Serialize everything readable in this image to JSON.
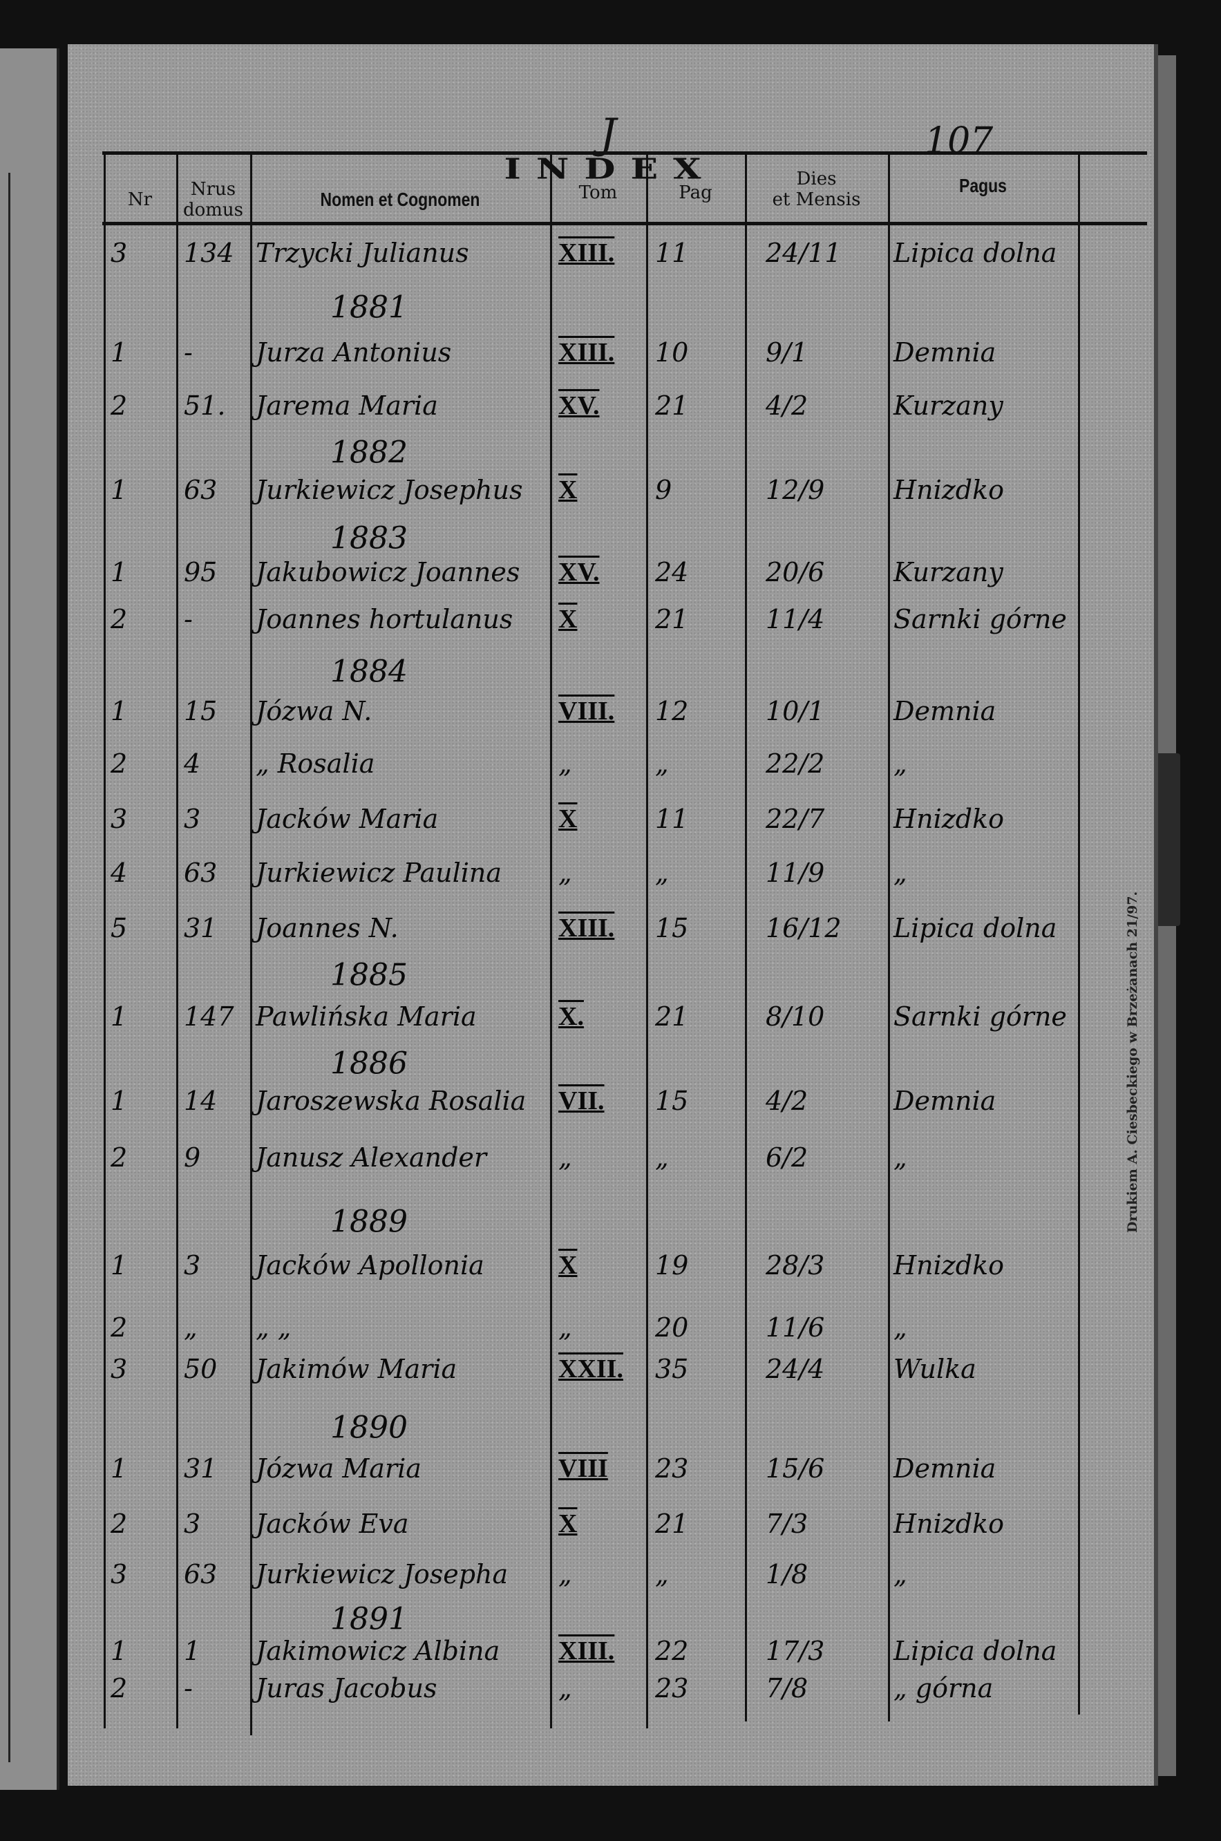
{
  "header": {
    "letter": "J",
    "title": "INDEX",
    "page_number": "107",
    "columns": {
      "nr": "Nr",
      "nrus_domus": [
        "Nrus",
        "domus"
      ],
      "nomen": "Nomen et Cognomen",
      "tom": "Tom",
      "pag": "Pag",
      "dies": [
        "Dies",
        "et Mensis"
      ],
      "pagus": "Pagus"
    }
  },
  "printer_note": "Drukiem A. Ciesbeckiego w Brzeżanach 21/97.",
  "rows": [
    {
      "nr": "3",
      "domus": "134",
      "name": "Trzycki Julianus",
      "tom": "XIII.",
      "pag": "11",
      "date": "24/11",
      "pagus": "Lipica dolna"
    },
    {
      "year": "1881"
    },
    {
      "nr": "1",
      "domus": "-",
      "name": "Jurza Antonius",
      "tom": "XIII.",
      "pag": "10",
      "date": "9/1",
      "pagus": "Demnia"
    },
    {
      "nr": "2",
      "domus": "51.",
      "name": "Jarema Maria",
      "tom": "XV.",
      "pag": "21",
      "date": "4/2",
      "pagus": "Kurzany"
    },
    {
      "year": "1882"
    },
    {
      "nr": "1",
      "domus": "63",
      "name": "Jurkiewicz Josephus",
      "tom": "X",
      "pag": "9",
      "date": "12/9",
      "pagus": "Hnizdko"
    },
    {
      "year": "1883"
    },
    {
      "nr": "1",
      "domus": "95",
      "name": "Jakubowicz Joannes",
      "tom": "XV.",
      "pag": "24",
      "date": "20/6",
      "pagus": "Kurzany"
    },
    {
      "nr": "2",
      "domus": "-",
      "name": "Joannes hortulanus",
      "tom": "X",
      "pag": "21",
      "date": "11/4",
      "pagus": "Sarnki górne"
    },
    {
      "year": "1884"
    },
    {
      "nr": "1",
      "domus": "15",
      "name": "Józwa N.",
      "tom": "VIII.",
      "pag": "12",
      "date": "10/1",
      "pagus": "Demnia"
    },
    {
      "nr": "2",
      "domus": "4",
      "name": "„ Rosalia",
      "tom": "„",
      "pag": "„",
      "date": "22/2",
      "pagus": "„"
    },
    {
      "nr": "3",
      "domus": "3",
      "name": "Jacków Maria",
      "tom": "X",
      "pag": "11",
      "date": "22/7",
      "pagus": "Hnizdko"
    },
    {
      "nr": "4",
      "domus": "63",
      "name": "Jurkiewicz Paulina",
      "tom": "„",
      "pag": "„",
      "date": "11/9",
      "pagus": "„"
    },
    {
      "nr": "5",
      "domus": "31",
      "name": "Joannes N.",
      "tom": "XIII.",
      "pag": "15",
      "date": "16/12",
      "pagus": "Lipica dolna"
    },
    {
      "year": "1885"
    },
    {
      "nr": "1",
      "domus": "147",
      "name": "Pawlińska Maria",
      "tom": "X.",
      "pag": "21",
      "date": "8/10",
      "pagus": "Sarnki górne"
    },
    {
      "year": "1886"
    },
    {
      "nr": "1",
      "domus": "14",
      "name": "Jaroszewska Rosalia",
      "tom": "VII.",
      "pag": "15",
      "date": "4/2",
      "pagus": "Demnia"
    },
    {
      "nr": "2",
      "domus": "9",
      "name": "Janusz Alexander",
      "tom": "„",
      "pag": "„",
      "date": "6/2",
      "pagus": "„"
    },
    {
      "year": "1889"
    },
    {
      "nr": "1",
      "domus": "3",
      "name": "Jacków Apollonia",
      "tom": "X",
      "pag": "19",
      "date": "28/3",
      "pagus": "Hnizdko"
    },
    {
      "nr": "2",
      "domus": "„",
      "name": "„ „",
      "tom": "„",
      "pag": "20",
      "date": "11/6",
      "pagus": "„"
    },
    {
      "nr": "3",
      "domus": "50",
      "name": "Jakimów Maria",
      "tom": "XXII.",
      "pag": "35",
      "date": "24/4",
      "pagus": "Wulka"
    },
    {
      "year": "1890"
    },
    {
      "nr": "1",
      "domus": "31",
      "name": "Józwa Maria",
      "tom": "VIII",
      "pag": "23",
      "date": "15/6",
      "pagus": "Demnia"
    },
    {
      "nr": "2",
      "domus": "3",
      "name": "Jacków Eva",
      "tom": "X",
      "pag": "21",
      "date": "7/3",
      "pagus": "Hnizdko"
    },
    {
      "nr": "3",
      "domus": "63",
      "name": "Jurkiewicz Josepha",
      "tom": "„",
      "pag": "„",
      "date": "1/8",
      "pagus": "„"
    },
    {
      "year": "1891"
    },
    {
      "nr": "1",
      "domus": "1",
      "name": "Jakimowicz Albina",
      "tom": "XIII.",
      "pag": "22",
      "date": "17/3",
      "pagus": "Lipica dolna"
    },
    {
      "nr": "2",
      "domus": "-",
      "name": "Juras Jacobus",
      "tom": "„",
      "pag": "23",
      "date": "7/8",
      "pagus": "„ górna"
    }
  ]
}
